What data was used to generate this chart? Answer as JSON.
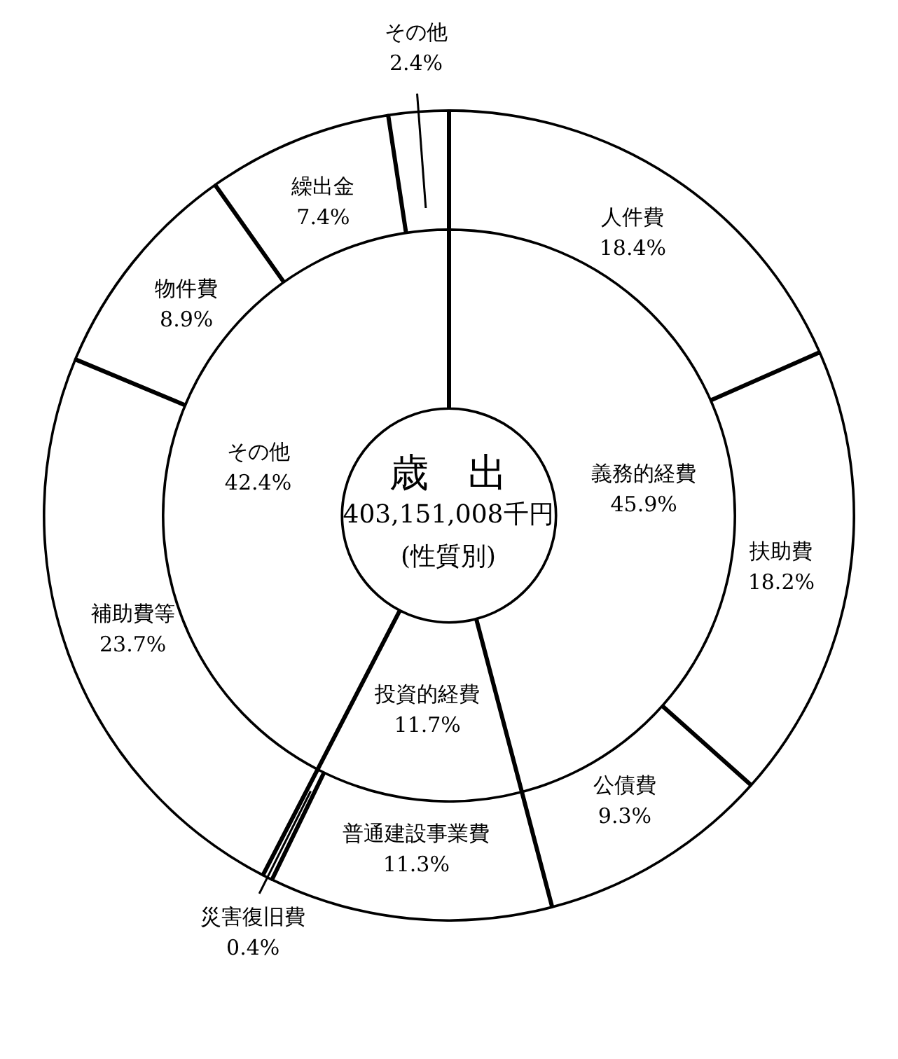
{
  "chart_data": [
    {
      "type": "donut",
      "title": "歳　出",
      "subtitle": "403,151,008千円",
      "annotations": [
        "(性質別)"
      ],
      "categories": [
        "義務的経費",
        "投資的経費",
        "その他"
      ],
      "values": [
        45.9,
        11.7,
        42.4
      ],
      "value_labels": [
        "45.9%",
        "11.7%",
        "42.4%"
      ],
      "colors": [
        "#ffffff",
        "#ffffff",
        "#ffffff"
      ]
    },
    {
      "type": "donut",
      "categories": [
        "人件費",
        "扶助費",
        "公債費",
        "普通建設事業費",
        "災害復旧費",
        "補助費等",
        "物件費",
        "繰出金",
        "その他"
      ],
      "values": [
        18.4,
        18.2,
        9.3,
        11.3,
        0.4,
        23.7,
        8.9,
        7.4,
        2.4
      ],
      "value_labels": [
        "18.4%",
        "18.2%",
        "9.3%",
        "11.3%",
        "0.4%",
        "23.7%",
        "8.9%",
        "7.4%",
        "2.4%"
      ],
      "colors": [
        "#ffffff",
        "#ffffff",
        "#ffffff",
        "#ffffff",
        "#ffffff",
        "#ffffff",
        "#ffffff",
        "#ffffff",
        "#ffffff"
      ]
    }
  ]
}
